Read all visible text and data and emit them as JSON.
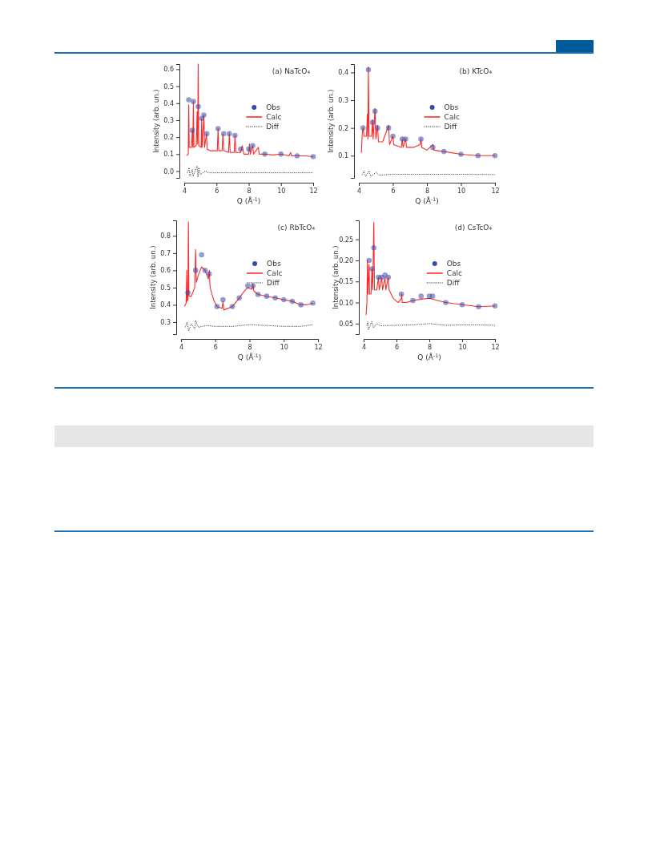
{
  "chart_data": [
    {
      "type": "line",
      "title": "(a)  NaTcO₄",
      "xlabel": "Q (Å$^{-1}$)",
      "ylabel": "Intensity (arb. un.)",
      "xlim": [
        4,
        12
      ],
      "xticks": [
        4,
        6,
        8,
        10,
        12
      ],
      "ylim": [
        -0.04,
        0.63
      ],
      "yticks": [
        {
          "value": 0,
          "label": "0.0"
        },
        0.1,
        0.2,
        0.3,
        0.4,
        0.5,
        0.6
      ],
      "legend": "right",
      "grid": false,
      "series": [
        {
          "name": "Obs",
          "type": "scatter",
          "marker": "circle",
          "color": "#3a49a8",
          "x": [
            4.28,
            4.5,
            4.57,
            4.87,
            5.08,
            5.22,
            5.4,
            6.1,
            6.45,
            6.8,
            7.15,
            7.5,
            8.0,
            8.25,
            9.0,
            10.0,
            11.0,
            12.0
          ],
          "values": [
            0.42,
            0.24,
            0.41,
            0.38,
            0.31,
            0.33,
            0.22,
            0.25,
            0.22,
            0.22,
            0.21,
            0.13,
            0.13,
            0.15,
            0.1,
            0.1,
            0.09,
            0.085
          ]
        },
        {
          "name": "Calc",
          "type": "line",
          "line_style": "solid",
          "color": "#ff2a2a",
          "x": [
            4.15,
            4.25,
            4.28,
            4.31,
            4.45,
            4.5,
            4.53,
            4.57,
            4.6,
            4.75,
            4.8,
            4.83,
            4.87,
            4.9,
            5.05,
            5.08,
            5.11,
            5.22,
            5.26,
            5.38,
            5.42,
            5.6,
            5.8,
            6.05,
            6.1,
            6.14,
            6.35,
            6.4,
            6.45,
            6.75,
            6.8,
            6.85,
            7.1,
            7.15,
            7.2,
            7.5,
            7.6,
            7.7,
            8.0,
            8.05,
            8.1,
            8.25,
            8.3,
            8.6,
            8.65,
            9.0,
            9.5,
            10.0,
            10.5,
            10.6,
            10.65,
            11.0,
            11.5,
            12.0
          ],
          "values": [
            0.09,
            0.1,
            0.39,
            0.14,
            0.14,
            0.24,
            0.14,
            0.41,
            0.14,
            0.15,
            0.35,
            0.16,
            0.63,
            0.15,
            0.14,
            0.31,
            0.14,
            0.33,
            0.14,
            0.22,
            0.13,
            0.12,
            0.12,
            0.12,
            0.25,
            0.12,
            0.12,
            0.22,
            0.12,
            0.11,
            0.22,
            0.11,
            0.11,
            0.21,
            0.11,
            0.11,
            0.15,
            0.1,
            0.1,
            0.16,
            0.1,
            0.15,
            0.1,
            0.14,
            0.1,
            0.1,
            0.095,
            0.1,
            0.09,
            0.11,
            0.09,
            0.09,
            0.09,
            0.085
          ]
        },
        {
          "name": "Diff",
          "type": "line",
          "line_style": "dotted",
          "color": "#333333",
          "x": [
            4.2,
            4.3,
            4.35,
            4.5,
            4.55,
            4.8,
            4.85,
            4.9,
            5.0,
            5.3,
            5.5,
            6,
            7,
            8,
            9,
            10,
            11,
            12
          ],
          "values": [
            -0.01,
            0.02,
            -0.03,
            0.01,
            -0.03,
            0.03,
            -0.035,
            0.02,
            -0.02,
            0.0,
            -0.01,
            -0.01,
            -0.01,
            -0.01,
            -0.01,
            -0.01,
            -0.01,
            -0.01
          ]
        }
      ]
    },
    {
      "type": "line",
      "title": "(b)  KTcO₄",
      "xlabel": "Q (Å$^{-1}$)",
      "ylabel": "Intensity (arb. un.)",
      "xlim": [
        4,
        12
      ],
      "xticks": [
        4,
        6,
        8,
        10,
        12
      ],
      "ylim": [
        0.02,
        0.43
      ],
      "yticks": [
        0.1,
        0.2,
        0.3,
        0.4
      ],
      "legend": "right",
      "grid": false,
      "series": [
        {
          "name": "Obs",
          "type": "scatter",
          "marker": "circle",
          "color": "#3a49a8",
          "x": [
            4.25,
            4.56,
            4.8,
            4.95,
            5.1,
            5.75,
            6.0,
            6.55,
            6.75,
            7.65,
            8.35,
            9.0,
            10.0,
            11.0,
            12.0
          ],
          "values": [
            0.2,
            0.41,
            0.22,
            0.26,
            0.2,
            0.2,
            0.17,
            0.16,
            0.16,
            0.16,
            0.13,
            0.115,
            0.105,
            0.1,
            0.1
          ]
        },
        {
          "name": "Calc",
          "type": "line",
          "line_style": "solid",
          "color": "#ff2a2a",
          "x": [
            4.15,
            4.2,
            4.25,
            4.3,
            4.45,
            4.5,
            4.53,
            4.56,
            4.6,
            4.75,
            4.8,
            4.84,
            4.95,
            5.0,
            5.1,
            5.15,
            5.4,
            5.75,
            5.8,
            6.0,
            6.05,
            6.5,
            6.55,
            6.6,
            6.75,
            6.8,
            7.2,
            7.6,
            7.65,
            7.7,
            8.0,
            8.35,
            8.4,
            9.0,
            10.0,
            11.0,
            12.0
          ],
          "values": [
            0.11,
            0.18,
            0.2,
            0.17,
            0.17,
            0.25,
            0.16,
            0.42,
            0.17,
            0.17,
            0.23,
            0.16,
            0.27,
            0.16,
            0.21,
            0.15,
            0.15,
            0.21,
            0.14,
            0.17,
            0.14,
            0.13,
            0.16,
            0.13,
            0.16,
            0.13,
            0.13,
            0.14,
            0.16,
            0.13,
            0.12,
            0.14,
            0.12,
            0.115,
            0.105,
            0.1,
            0.1
          ]
        },
        {
          "name": "Diff",
          "type": "line",
          "line_style": "dotted",
          "color": "#333333",
          "x": [
            4.2,
            4.3,
            4.4,
            4.6,
            4.7,
            5.0,
            5.2,
            6,
            7,
            8,
            10,
            12
          ],
          "values": [
            0.03,
            0.045,
            0.025,
            0.045,
            0.025,
            0.04,
            0.03,
            0.033,
            0.033,
            0.033,
            0.033,
            0.032
          ]
        }
      ]
    },
    {
      "type": "line",
      "title": "(c)  RbTcO₄",
      "xlabel": "Q (Å$^{-1}$)",
      "ylabel": "Intensity (arb. un.)",
      "xlim": [
        4,
        12
      ],
      "xticks": [
        4,
        6,
        8,
        10,
        12
      ],
      "ylim": [
        0.23,
        0.89
      ],
      "yticks": [
        0.3,
        0.4,
        0.5,
        0.6,
        0.7,
        0.8
      ],
      "legend": "right",
      "grid": false,
      "series": [
        {
          "name": "Obs",
          "type": "scatter",
          "marker": "circle",
          "color": "#3a49a8",
          "x": [
            4.4,
            4.85,
            5.2,
            5.4,
            5.65,
            6.1,
            6.45,
            7.0,
            7.4,
            7.9,
            8.2,
            8.5,
            9.0,
            9.5,
            10.0,
            10.5,
            11.0,
            11.7
          ],
          "values": [
            0.47,
            0.6,
            0.69,
            0.6,
            0.58,
            0.39,
            0.43,
            0.39,
            0.44,
            0.51,
            0.51,
            0.46,
            0.45,
            0.44,
            0.43,
            0.42,
            0.4,
            0.41
          ]
        },
        {
          "name": "Calc",
          "type": "line",
          "line_style": "solid",
          "color": "#ff2a2a",
          "x": [
            4.2,
            4.3,
            4.33,
            4.36,
            4.4,
            4.43,
            4.46,
            4.6,
            4.8,
            4.85,
            4.9,
            5.0,
            5.2,
            5.4,
            5.6,
            5.65,
            5.7,
            5.9,
            6.1,
            6.4,
            6.45,
            6.5,
            7.0,
            7.4,
            7.7,
            7.9,
            8.15,
            8.2,
            8.25,
            8.5,
            9.0,
            9.5,
            10.0,
            10.5,
            11.0,
            11.3,
            11.7
          ],
          "values": [
            0.39,
            0.41,
            0.6,
            0.42,
            0.43,
            0.88,
            0.45,
            0.45,
            0.5,
            0.72,
            0.53,
            0.57,
            0.62,
            0.6,
            0.55,
            0.6,
            0.5,
            0.43,
            0.39,
            0.38,
            0.42,
            0.37,
            0.39,
            0.44,
            0.48,
            0.5,
            0.49,
            0.52,
            0.48,
            0.46,
            0.45,
            0.44,
            0.43,
            0.42,
            0.4,
            0.4,
            0.41
          ]
        },
        {
          "name": "Diff",
          "type": "line",
          "line_style": "dotted",
          "color": "#333333",
          "x": [
            4.25,
            4.35,
            4.45,
            4.6,
            4.8,
            4.85,
            5.0,
            5.5,
            6,
            7,
            8,
            9,
            10,
            11,
            11.7
          ],
          "values": [
            0.27,
            0.3,
            0.25,
            0.29,
            0.26,
            0.31,
            0.27,
            0.28,
            0.275,
            0.275,
            0.285,
            0.28,
            0.275,
            0.275,
            0.285
          ]
        }
      ]
    },
    {
      "type": "line",
      "title": "(d)  CsTcO₄",
      "xlabel": "Q (Å$^{-1}$)",
      "ylabel": "Intensity (arb. un.)",
      "xlim": [
        4,
        12
      ],
      "xticks": [
        4,
        6,
        8,
        10,
        12
      ],
      "ylim": [
        0.025,
        0.295
      ],
      "yticks": [
        {
          "value": 0.05,
          "label": "0.05"
        },
        {
          "value": 0.1,
          "label": "0.10"
        },
        {
          "value": 0.15,
          "label": "0.15"
        },
        {
          "value": 0.2,
          "label": "0.20"
        },
        {
          "value": 0.25,
          "label": "0.25"
        }
      ],
      "legend": "right",
      "grid": false,
      "series": [
        {
          "name": "Obs",
          "type": "scatter",
          "marker": "circle",
          "color": "#3a49a8",
          "x": [
            4.33,
            4.5,
            4.62,
            4.9,
            5.1,
            5.3,
            5.5,
            6.3,
            7.0,
            7.5,
            8.0,
            8.2,
            9.0,
            10.0,
            11.0,
            12.0
          ],
          "values": [
            0.2,
            0.18,
            0.23,
            0.16,
            0.16,
            0.165,
            0.16,
            0.12,
            0.105,
            0.115,
            0.115,
            0.115,
            0.1,
            0.095,
            0.09,
            0.092
          ]
        },
        {
          "name": "Calc",
          "type": "line",
          "line_style": "solid",
          "color": "#ff2a2a",
          "x": [
            4.15,
            4.2,
            4.23,
            4.26,
            4.33,
            4.36,
            4.45,
            4.5,
            4.55,
            4.62,
            4.66,
            4.8,
            4.9,
            4.95,
            5.1,
            5.15,
            5.3,
            5.35,
            5.5,
            5.55,
            5.8,
            6.1,
            6.3,
            6.32,
            6.35,
            6.6,
            7.0,
            7.5,
            8.0,
            8.5,
            9.0,
            10.0,
            11.0,
            12.0
          ],
          "values": [
            0.07,
            0.1,
            0.2,
            0.12,
            0.19,
            0.12,
            0.12,
            0.18,
            0.13,
            0.29,
            0.13,
            0.13,
            0.16,
            0.13,
            0.16,
            0.13,
            0.16,
            0.13,
            0.16,
            0.13,
            0.11,
            0.1,
            0.11,
            0.12,
            0.1,
            0.1,
            0.105,
            0.108,
            0.11,
            0.105,
            0.1,
            0.095,
            0.09,
            0.092
          ]
        },
        {
          "name": "Diff",
          "type": "line",
          "line_style": "dotted",
          "color": "#333333",
          "x": [
            4.2,
            4.25,
            4.3,
            4.5,
            4.6,
            4.8,
            5.0,
            6,
            7,
            8,
            9,
            10,
            11,
            12
          ],
          "values": [
            0.045,
            0.055,
            0.035,
            0.055,
            0.04,
            0.05,
            0.045,
            0.046,
            0.047,
            0.05,
            0.046,
            0.047,
            0.047,
            0.046
          ]
        }
      ]
    }
  ]
}
